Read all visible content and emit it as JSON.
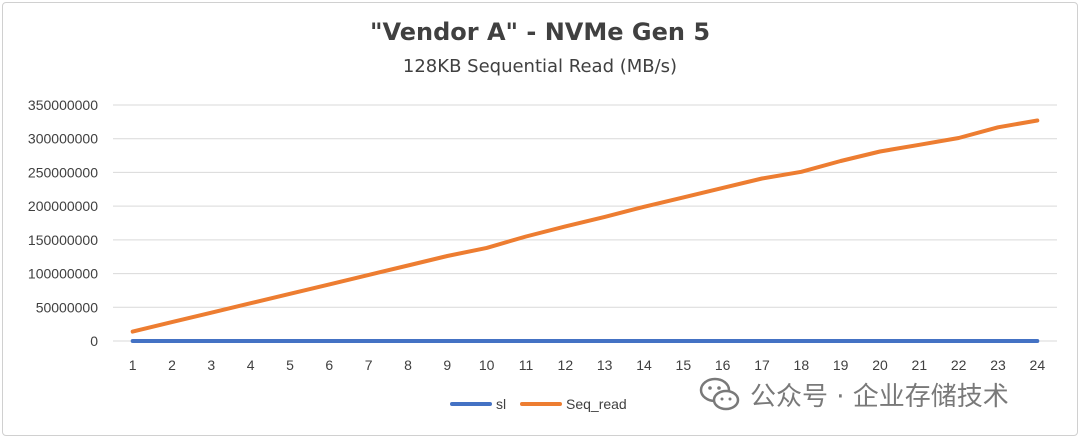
{
  "chart_data": {
    "type": "line",
    "title": "\"Vendor A\" - NVMe Gen 5",
    "subtitle": "128KB Sequential  Read (MB/s)",
    "xlabel": "",
    "ylabel": "",
    "x": [
      1,
      2,
      3,
      4,
      5,
      6,
      7,
      8,
      9,
      10,
      11,
      12,
      13,
      14,
      15,
      16,
      17,
      18,
      19,
      20,
      21,
      22,
      23,
      24
    ],
    "ylim": [
      0,
      350000000
    ],
    "yticks": [
      0,
      50000000,
      100000000,
      150000000,
      200000000,
      250000000,
      300000000,
      350000000
    ],
    "grid": "horizontal",
    "legend_position": "bottom",
    "series": [
      {
        "name": "sl",
        "color": "#4472c4",
        "values": [
          0,
          0,
          0,
          0,
          0,
          0,
          0,
          0,
          0,
          0,
          0,
          0,
          0,
          0,
          0,
          0,
          0,
          0,
          0,
          0,
          0,
          0,
          0,
          0
        ]
      },
      {
        "name": "Seq_read",
        "color": "#ed7d31",
        "values": [
          14000000,
          28000000,
          42000000,
          56000000,
          70000000,
          84000000,
          98000000,
          112000000,
          126000000,
          138000000,
          155000000,
          170000000,
          184000000,
          199000000,
          213000000,
          227000000,
          241000000,
          251000000,
          267000000,
          281000000,
          291000000,
          301000000,
          317000000,
          327000000
        ]
      }
    ]
  },
  "watermark": {
    "text": "公众号 · 企业存储技术",
    "icon": "wechat-icon"
  }
}
